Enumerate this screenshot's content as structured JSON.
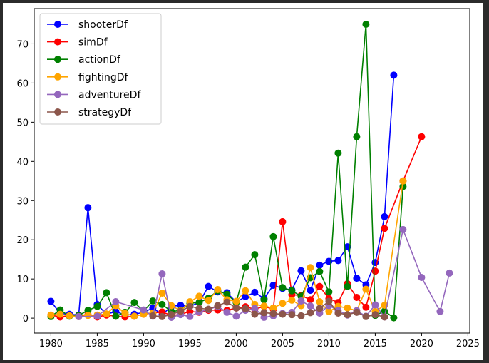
{
  "chart_data": {
    "type": "line",
    "title": "",
    "xlabel": "",
    "ylabel": "",
    "xlim": [
      1978.2,
      2025.2
    ],
    "ylim": [
      -3.8,
      79
    ],
    "xticks": [
      1980,
      1985,
      1990,
      1995,
      2000,
      2005,
      2010,
      2015,
      2020,
      2025
    ],
    "yticks": [
      0,
      10,
      20,
      30,
      40,
      50,
      60,
      70
    ],
    "grid": false,
    "legend_position": "top-left",
    "series": [
      {
        "name": "shooterDf",
        "color": "#0000ff",
        "x": [
          1980,
          1981,
          1982,
          1983,
          1984,
          1985,
          1986,
          1987,
          1988,
          1989,
          1990,
          1991,
          1992,
          1993,
          1994,
          1995,
          1996,
          1997,
          1998,
          1999,
          2000,
          2001,
          2002,
          2003,
          2004,
          2005,
          2006,
          2007,
          2008,
          2009,
          2010,
          2011,
          2012,
          2013,
          2014,
          2015,
          2016,
          2017
        ],
        "y": [
          4.3,
          1.2,
          1.0,
          0.8,
          28.2,
          3.5,
          1.0,
          1.7,
          0.8,
          1.0,
          1.5,
          2.6,
          0.9,
          3.0,
          3.3,
          3.0,
          4.0,
          8.1,
          6.7,
          6.5,
          4.1,
          5.5,
          6.6,
          5.0,
          8.4,
          7.6,
          7.2,
          12.1,
          7.1,
          13.5,
          14.5,
          14.7,
          18.2,
          10.2,
          8.5,
          14.2,
          25.9,
          62.0
        ]
      },
      {
        "name": "simDf",
        "color": "#ff0000",
        "x": [
          1980,
          1981,
          1982,
          1983,
          1984,
          1985,
          1986,
          1987,
          1988,
          1989,
          1990,
          1991,
          1992,
          1993,
          1994,
          1995,
          1996,
          1997,
          1998,
          1999,
          2000,
          2001,
          2002,
          2003,
          2004,
          2005,
          2006,
          2007,
          2008,
          2009,
          2010,
          2011,
          2012,
          2013,
          2014,
          2015,
          2016,
          2018,
          2020
        ],
        "y": [
          0.8,
          0.3,
          0.6,
          0.7,
          0.9,
          0.3,
          0.8,
          0.5,
          0.3,
          0.5,
          1.0,
          1.3,
          1.6,
          0.7,
          1.0,
          1.7,
          1.5,
          2.0,
          2.1,
          2.0,
          2.6,
          2.9,
          2.3,
          3.0,
          2.3,
          24.6,
          6.0,
          5.8,
          4.7,
          8.1,
          5.0,
          4.0,
          8.8,
          5.3,
          2.8,
          12.0,
          22.9,
          35.0,
          46.3
        ]
      },
      {
        "name": "actionDf",
        "color": "#008000",
        "x": [
          1980,
          1981,
          1982,
          1983,
          1984,
          1985,
          1986,
          1987,
          1988,
          1989,
          1990,
          1991,
          1992,
          1993,
          1994,
          1995,
          1996,
          1997,
          1998,
          1999,
          2000,
          2001,
          2002,
          2003,
          2004,
          2005,
          2006,
          2007,
          2008,
          2009,
          2010,
          2011,
          2012,
          2013,
          2014,
          2015,
          2016,
          2017,
          2018
        ],
        "y": [
          0.4,
          2.1,
          0.5,
          0.7,
          2.0,
          3.0,
          6.5,
          0.5,
          1.5,
          4.0,
          1.8,
          4.4,
          3.5,
          1.7,
          2.0,
          3.8,
          4.0,
          5.1,
          7.0,
          6.1,
          4.0,
          13.0,
          16.2,
          4.7,
          20.8,
          7.8,
          7.0,
          5.6,
          10.3,
          11.9,
          6.7,
          42.1,
          8.1,
          46.3,
          75.0,
          0.7,
          1.8,
          0.1,
          33.6
        ]
      },
      {
        "name": "fightingDf",
        "color": "#ffa500",
        "x": [
          1980,
          1981,
          1982,
          1983,
          1984,
          1985,
          1986,
          1987,
          1988,
          1989,
          1990,
          1991,
          1992,
          1993,
          1994,
          1995,
          1996,
          1997,
          1998,
          1999,
          2000,
          2001,
          2002,
          2003,
          2004,
          2005,
          2006,
          2007,
          2008,
          2009,
          2010,
          2011,
          2012,
          2013,
          2014,
          2015,
          2016,
          2018
        ],
        "y": [
          0.8,
          1.0,
          0.6,
          0.4,
          0.7,
          0.8,
          1.1,
          3.2,
          1.2,
          0.5,
          1.0,
          1.3,
          6.4,
          3.2,
          1.9,
          4.2,
          5.6,
          4.5,
          7.3,
          4.7,
          4.3,
          7.0,
          3.5,
          3.1,
          2.6,
          3.8,
          4.6,
          3.2,
          12.9,
          4.2,
          1.7,
          3.0,
          2.6,
          1.9,
          7.4,
          1.7,
          3.3,
          35.0
        ]
      },
      {
        "name": "adventureDf",
        "color": "#9467bd",
        "x": [
          1983,
          1985,
          1987,
          1990,
          1991,
          1992,
          1993,
          1994,
          1995,
          1996,
          1997,
          1998,
          1999,
          2000,
          2001,
          2002,
          2003,
          2004,
          2005,
          2006,
          2007,
          2008,
          2009,
          2010,
          2011,
          2012,
          2013,
          2014,
          2015,
          2016,
          2018,
          2020,
          2022,
          2023
        ],
        "y": [
          0.4,
          0.5,
          4.2,
          2.1,
          0.5,
          11.3,
          0.2,
          0.9,
          0.4,
          1.6,
          2.2,
          3.0,
          1.5,
          0.5,
          2.0,
          2.5,
          0.2,
          0.6,
          1.2,
          1.5,
          4.4,
          3.1,
          1.3,
          3.2,
          2.0,
          0.8,
          1.9,
          0.5,
          3.4,
          0.3,
          22.6,
          10.4,
          1.7,
          11.5
        ]
      },
      {
        "name": "strategyDf",
        "color": "#8c564b",
        "x": [
          1991,
          1992,
          1993,
          1994,
          1995,
          1996,
          1997,
          1998,
          1999,
          2000,
          2001,
          2002,
          2003,
          2004,
          2005,
          2006,
          2007,
          2008,
          2009,
          2010,
          2011,
          2012,
          2013,
          2014,
          2015,
          2016
        ],
        "y": [
          0.6,
          0.4,
          0.9,
          1.8,
          3.0,
          2.5,
          2.3,
          3.2,
          4.1,
          2.6,
          2.4,
          1.0,
          1.4,
          1.2,
          1.0,
          0.9,
          0.6,
          1.4,
          2.5,
          4.3,
          1.3,
          0.9,
          1.5,
          0.4,
          0.9,
          0.3
        ]
      }
    ]
  }
}
